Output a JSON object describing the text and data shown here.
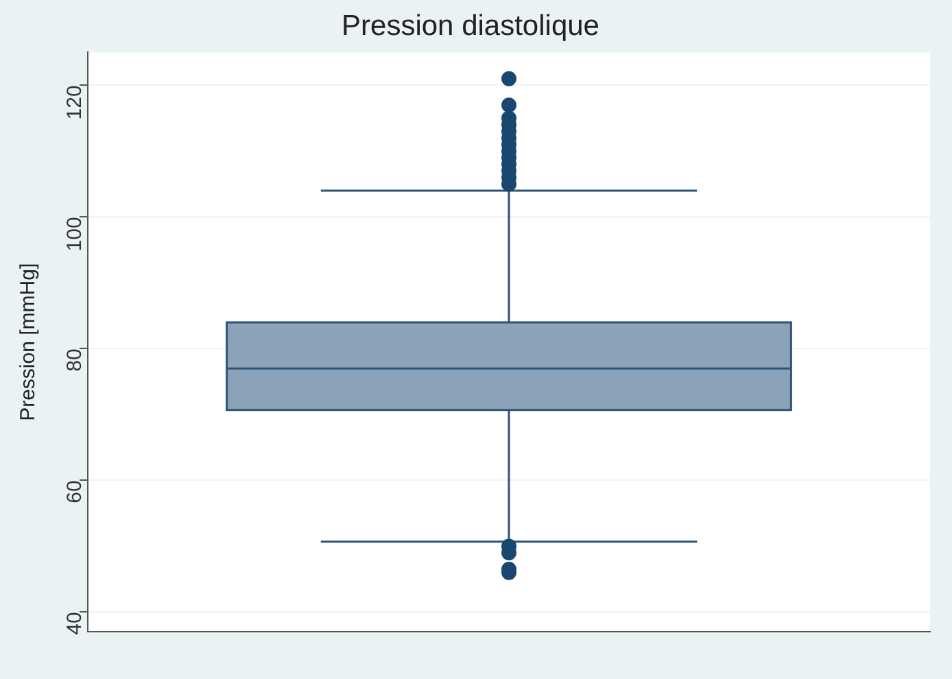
{
  "chart_data": {
    "type": "box",
    "title": "Pression diastolique",
    "ylabel": "Pression [mmHg]",
    "categories": [
      null
    ],
    "color": "#8ca2b8",
    "boxes": [
      {
        "low": 50.7,
        "q1": 70.7,
        "median": 77,
        "q3": 84,
        "high": 104,
        "outliers": [
          121,
          117,
          115,
          114,
          113,
          112,
          111,
          110,
          109,
          108,
          107,
          106,
          105,
          50,
          49,
          46.5,
          46
        ]
      }
    ],
    "ylim": [
      37,
      125
    ],
    "yticks": [
      40,
      60,
      80,
      100,
      120
    ],
    "grid": "y",
    "legend": false
  }
}
